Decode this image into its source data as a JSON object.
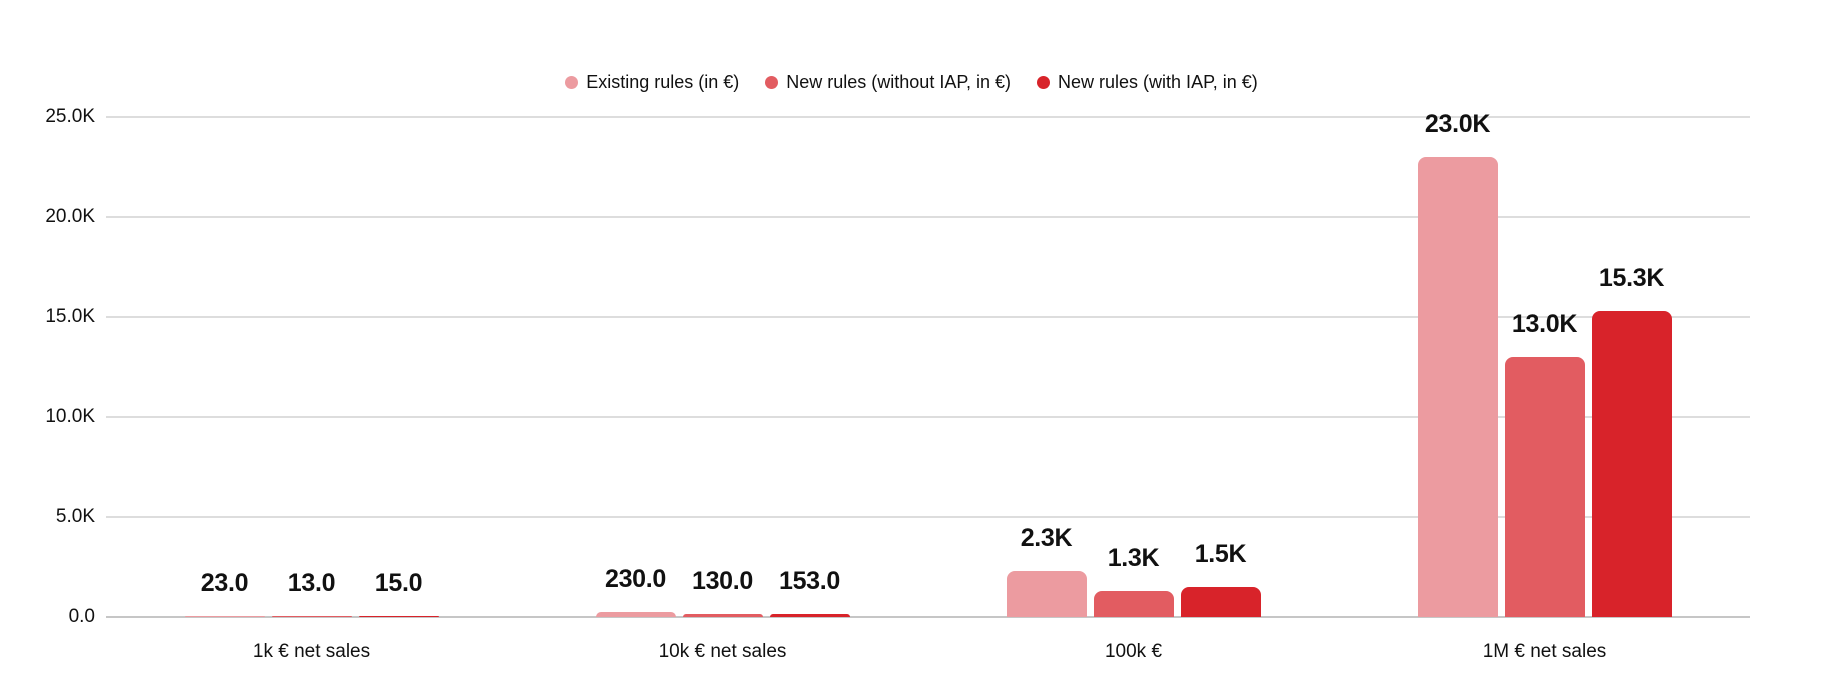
{
  "chart_data": {
    "type": "bar",
    "title": "",
    "categories": [
      "1k € net sales",
      "10k € net sales",
      "100k €",
      "1M € net sales"
    ],
    "series": [
      {
        "name": "Existing rules (in €)",
        "color": "#ec9ba0",
        "values": [
          23.0,
          230.0,
          2300,
          23000
        ],
        "value_labels": [
          "23.0",
          "230.0",
          "2.3K",
          "23.0K"
        ]
      },
      {
        "name": "New rules (without IAP, in €)",
        "color": "#e25c61",
        "values": [
          13.0,
          130.0,
          1300,
          13000
        ],
        "value_labels": [
          "13.0",
          "130.0",
          "1.3K",
          "13.0K"
        ]
      },
      {
        "name": "New rules (with IAP, in €)",
        "color": "#d8232a",
        "values": [
          15.0,
          153.0,
          1500,
          15300
        ],
        "value_labels": [
          "15.0",
          "153.0",
          "1.5K",
          "15.3K"
        ]
      }
    ],
    "y_axis": {
      "min": 0,
      "max": 25000,
      "tick_step": 5000,
      "tick_labels": [
        "0.0",
        "5.0K",
        "10.0K",
        "15.0K",
        "20.0K",
        "25.0K"
      ]
    },
    "legend_position": "top-center",
    "grid": "horizontal",
    "xlabel": "",
    "ylabel": ""
  },
  "style": {
    "gridline_color": "#dddddd",
    "baseline_color": "#c6c6c6",
    "text_color": "#111111",
    "background": "#ffffff"
  }
}
